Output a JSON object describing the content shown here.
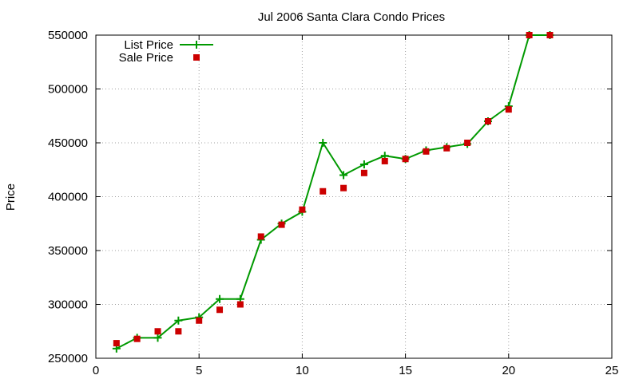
{
  "chart_data": {
    "type": "line",
    "title": "Jul 2006 Santa Clara Condo Prices",
    "xlabel": "",
    "ylabel": "Price",
    "xlim": [
      0,
      25
    ],
    "ylim": [
      250000,
      550000
    ],
    "xticks": [
      0,
      5,
      10,
      15,
      20,
      25
    ],
    "yticks": [
      250000,
      300000,
      350000,
      400000,
      450000,
      500000,
      550000
    ],
    "grid": true,
    "legend_position": "top-left",
    "series": [
      {
        "name": "List Price",
        "style": "line-plus",
        "color": "#009900",
        "x": [
          1,
          2,
          3,
          4,
          5,
          6,
          7,
          8,
          9,
          10,
          11,
          12,
          13,
          14,
          15,
          16,
          17,
          18,
          19,
          20,
          21,
          22
        ],
        "values": [
          259000,
          269000,
          269000,
          285000,
          288000,
          305000,
          305000,
          360000,
          375000,
          386000,
          450000,
          420000,
          430000,
          438000,
          435000,
          443000,
          446000,
          449000,
          470000,
          484000,
          550000,
          550000
        ]
      },
      {
        "name": "Sale Price",
        "style": "square",
        "color": "#cc0000",
        "x": [
          1,
          2,
          3,
          4,
          5,
          6,
          7,
          8,
          9,
          10,
          11,
          12,
          13,
          14,
          15,
          16,
          17,
          18,
          19,
          20,
          21,
          22
        ],
        "values": [
          264000,
          268000,
          275000,
          275000,
          285000,
          295000,
          300000,
          363000,
          374000,
          388000,
          405000,
          408000,
          422000,
          433000,
          435000,
          442000,
          445000,
          450000,
          470000,
          481000,
          550000,
          550000
        ]
      }
    ]
  }
}
